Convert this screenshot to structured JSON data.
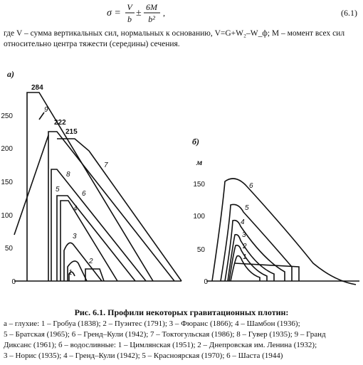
{
  "formula": {
    "lhs": "σ =",
    "num1": "V",
    "den1": "b",
    "op": "±",
    "num2": "6M",
    "den2": "b²",
    "end": ",",
    "number": "(6.1)"
  },
  "paragraph": [
    "где V – сумма вертикальных сил, нормальных к основанию, V=G+W₂–W_ф; M – момент всех сил",
    "относительно центра тяжести (середины) сечения."
  ],
  "figure": {
    "a": {
      "label": "а)",
      "yticks": [
        "0",
        "50",
        "100",
        "150",
        "200",
        "250"
      ],
      "peaks": [
        "284",
        "222",
        "215"
      ],
      "curves": [
        "1",
        "2",
        "3",
        "4",
        "5",
        "6",
        "7",
        "8",
        "9"
      ]
    },
    "b": {
      "label": "б)",
      "unit": "м",
      "yticks": [
        "0",
        "50",
        "100",
        "150"
      ],
      "curves": [
        "1",
        "2",
        "3",
        "4",
        "5",
        "6"
      ]
    }
  },
  "caption": {
    "title": "Рис. 6.1. Профили некоторых гравитационных плотин:",
    "lines": [
      "а – глухие: 1 – Гробуа (1838); 2 – Пуэнтес (1791); 3 – Фюранс (1866); 4 – Шамбон (1936);",
      "5 – Братская (1965); 6 – Гренд–Кули (1942); 7 – Токтогульская (1986); 8 – Гувер (1935); 9 – Гранд",
      "Диксанс (1961); б – водосливные: 1 – Цимлянская (1951); 2 – Днепровская им. Ленина (1932);",
      "3 – Норис (1935); 4 – Гренд–Кули (1942); 5 – Красноярская (1970); 6 – Шаста (1944)"
    ]
  }
}
